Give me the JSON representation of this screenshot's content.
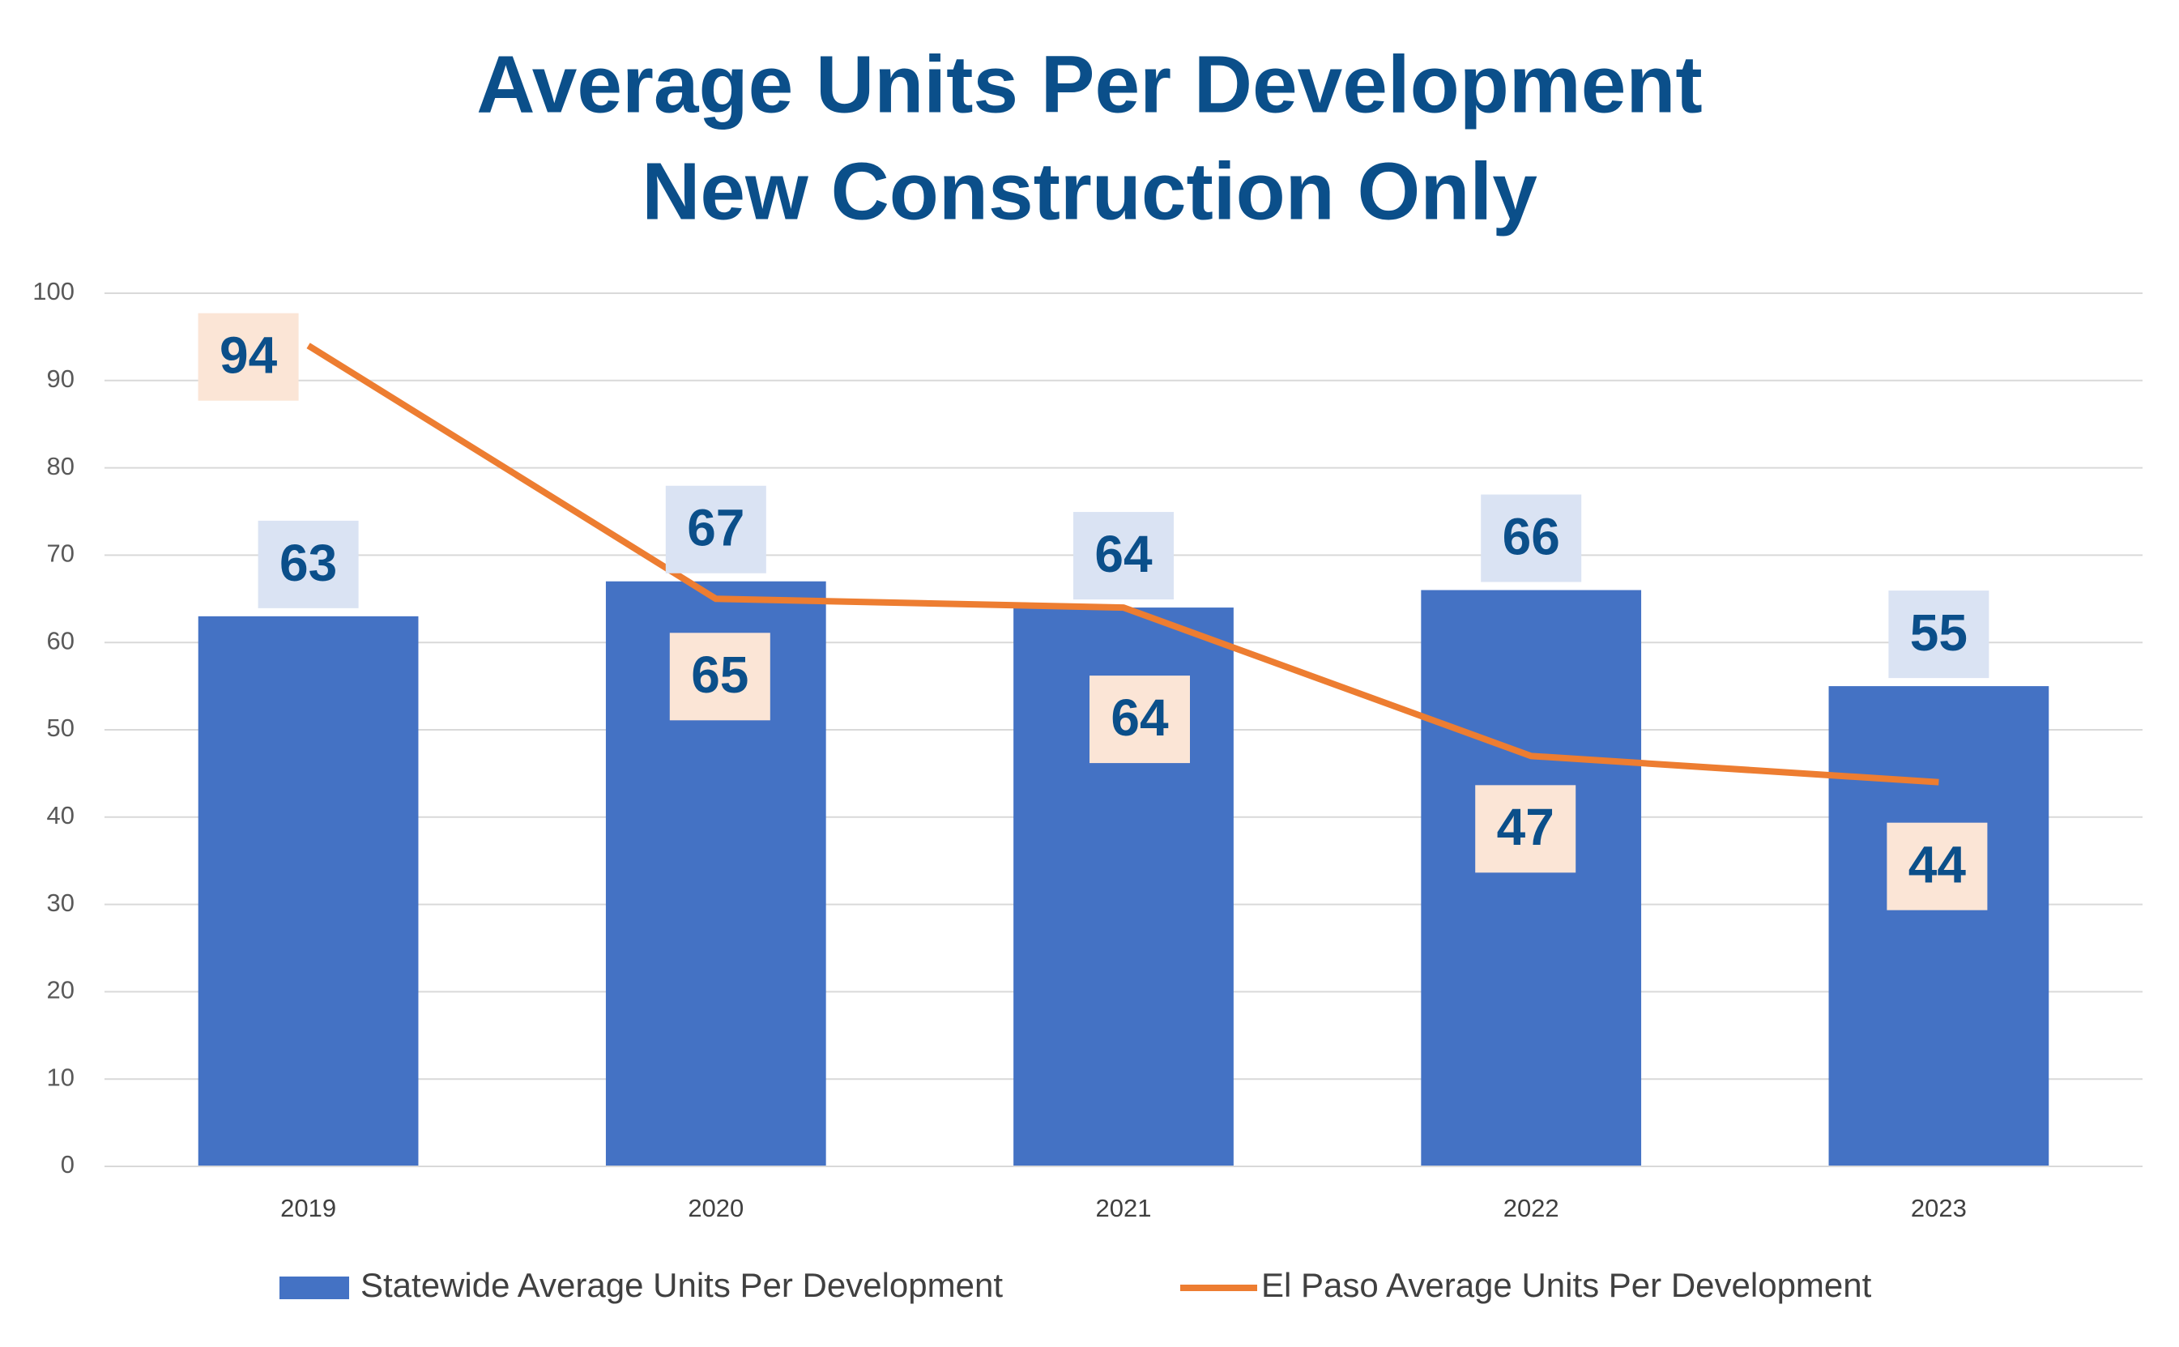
{
  "chart_data": {
    "type": "bar",
    "title": [
      "Average Units Per Development",
      "New Construction Only"
    ],
    "categories": [
      "2019",
      "2020",
      "2021",
      "2022",
      "2023"
    ],
    "series": [
      {
        "name": "Statewide Average Units Per Development",
        "type": "bar",
        "color": "#4472c4",
        "label_box": "#dae3f3",
        "values": [
          63,
          67,
          64,
          66,
          55
        ]
      },
      {
        "name": "El Paso Average Units Per Development",
        "type": "line",
        "color": "#ed7d31",
        "label_box": "#fbe5d6",
        "values": [
          94,
          65,
          64,
          47,
          44
        ]
      }
    ],
    "ylim": [
      0,
      100
    ],
    "yticks": [
      0,
      10,
      20,
      30,
      40,
      50,
      60,
      70,
      80,
      90,
      100
    ],
    "grid": true
  }
}
